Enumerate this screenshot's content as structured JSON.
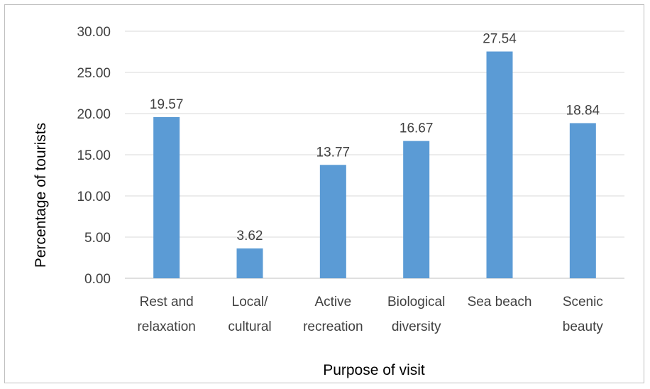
{
  "chart_data": {
    "type": "bar",
    "categories": [
      [
        "Rest and",
        "relaxation"
      ],
      [
        "Local/",
        "cultural"
      ],
      [
        "Active",
        "recreation"
      ],
      [
        "Biological",
        "diversity"
      ],
      [
        "Sea beach"
      ],
      [
        "Scenic",
        "beauty"
      ]
    ],
    "values": [
      19.57,
      3.62,
      13.77,
      16.67,
      27.54,
      18.84
    ],
    "data_labels": [
      "19.57",
      "3.62",
      "13.77",
      "16.67",
      "27.54",
      "18.84"
    ],
    "y_ticks": [
      "0.00",
      "5.00",
      "10.00",
      "15.00",
      "20.00",
      "25.00",
      "30.00"
    ],
    "ylim": [
      0,
      30
    ],
    "xlabel": "Purpose of visit",
    "ylabel": "Percentage of tourists",
    "bar_color": "#5b9bd5",
    "grid_color": "#d9d9d9",
    "grid": true,
    "legend": "none"
  }
}
